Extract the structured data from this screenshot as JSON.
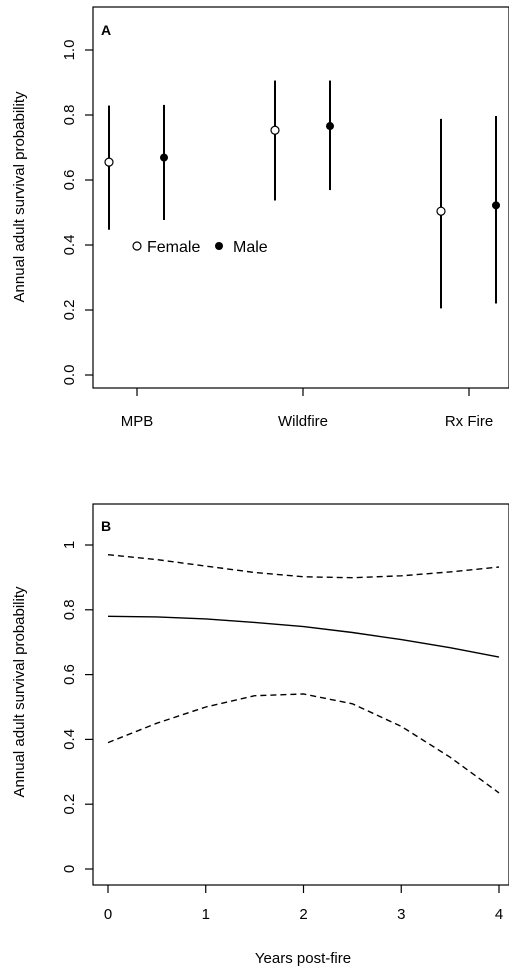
{
  "chart_data": [
    {
      "type": "scatter",
      "panel_label": "A",
      "ylabel": "Annual adult survival probability",
      "xlabel": "",
      "categories": [
        "MPB",
        "Wildfire",
        "Rx Fire"
      ],
      "ylim": [
        0,
        1.0
      ],
      "yticks": [
        "0.0",
        "0.2",
        "0.4",
        "0.6",
        "0.8",
        "1.0"
      ],
      "legend": {
        "placement": "left-middle",
        "entries": [
          "Female",
          "Male"
        ]
      },
      "series": [
        {
          "name": "Female",
          "marker": "open-circle",
          "values": [
            0.655,
            0.753,
            0.504
          ],
          "lower": [
            0.447,
            0.537,
            0.205
          ],
          "upper": [
            0.829,
            0.906,
            0.788
          ]
        },
        {
          "name": "Male",
          "marker": "filled-circle",
          "values": [
            0.669,
            0.766,
            0.522
          ],
          "lower": [
            0.477,
            0.569,
            0.22
          ],
          "upper": [
            0.831,
            0.906,
            0.797
          ]
        }
      ]
    },
    {
      "type": "line",
      "panel_label": "B",
      "ylabel": "Annual adult survival probability",
      "xlabel": "Years post-fire",
      "xlim": [
        0,
        4
      ],
      "ylim": [
        0,
        1
      ],
      "xticks": [
        "0",
        "1",
        "2",
        "3",
        "4"
      ],
      "yticks": [
        "0",
        "0.2",
        "0.4",
        "0.6",
        "0.8",
        "1"
      ],
      "x": [
        0,
        0.5,
        1,
        1.5,
        2,
        2.5,
        3,
        3.5,
        4
      ],
      "series": [
        {
          "style": "solid",
          "values": [
            0.78,
            0.778,
            0.772,
            0.761,
            0.748,
            0.73,
            0.708,
            0.683,
            0.654
          ]
        },
        {
          "style": "dashed",
          "values": [
            0.97,
            0.955,
            0.935,
            0.915,
            0.902,
            0.899,
            0.905,
            0.917,
            0.932
          ]
        },
        {
          "style": "dashed",
          "values": [
            0.39,
            0.45,
            0.5,
            0.535,
            0.54,
            0.51,
            0.44,
            0.345,
            0.235
          ]
        }
      ]
    }
  ]
}
